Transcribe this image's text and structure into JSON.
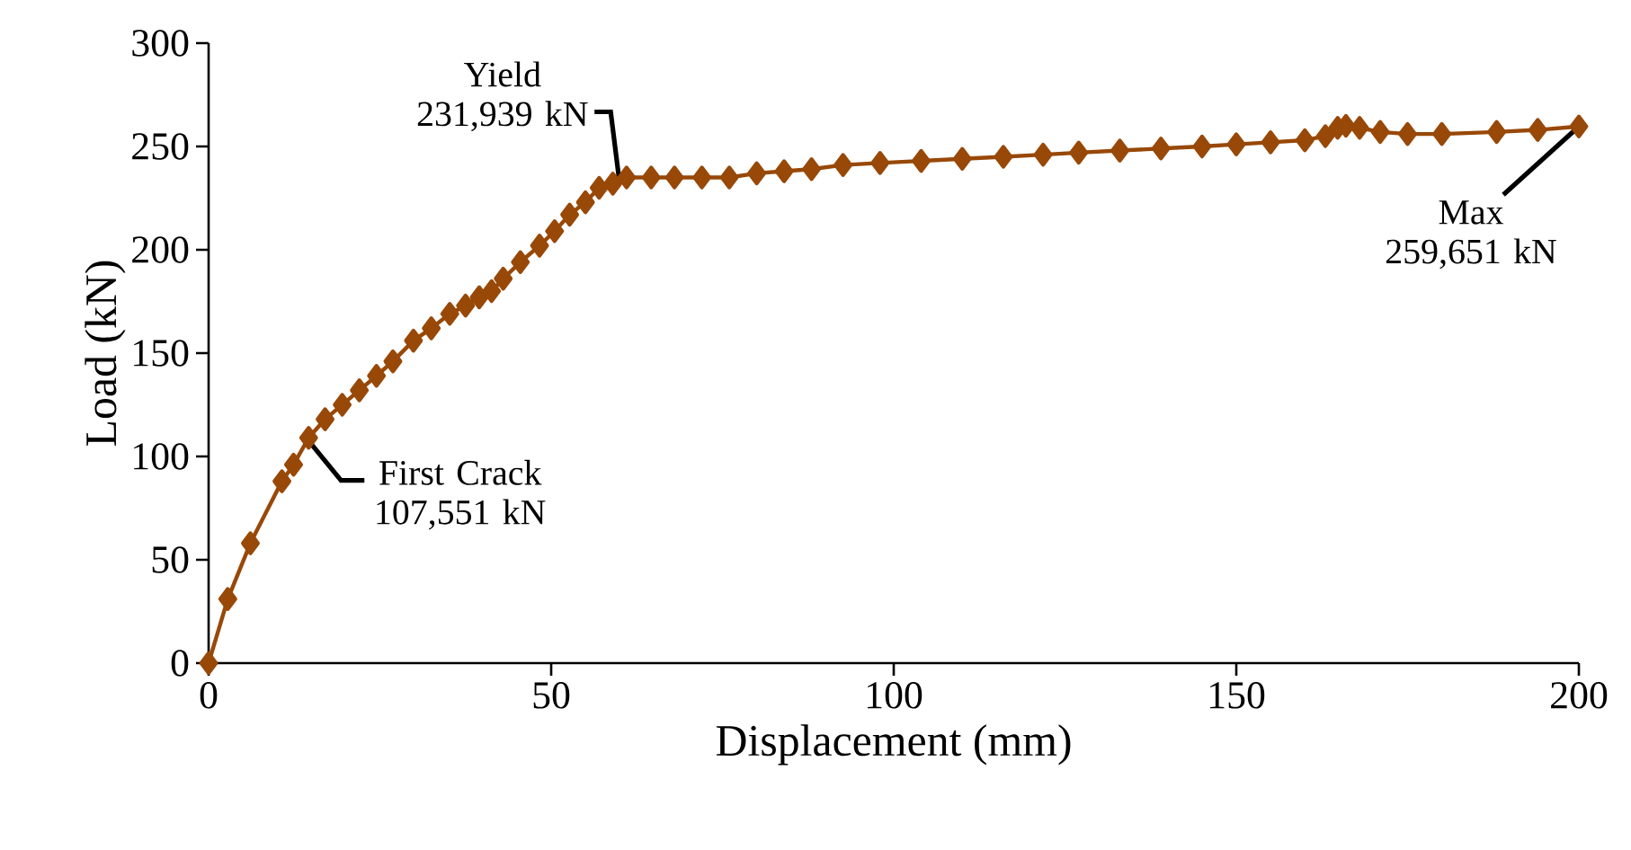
{
  "chart_data": {
    "type": "line",
    "xlabel": "Displacement (mm)",
    "ylabel": "Load (kN)",
    "xlim": [
      0,
      200
    ],
    "ylim": [
      0,
      300
    ],
    "xticks": [
      0,
      50,
      100,
      150,
      200
    ],
    "yticks": [
      0,
      50,
      100,
      150,
      200,
      250,
      300
    ],
    "grid": false,
    "marker": "diamond",
    "line_style": "solid",
    "series": [
      {
        "color": "#984807",
        "x": [
          0,
          2.8,
          6.1,
          10.7,
          12.4,
          14.6,
          17,
          19.5,
          22,
          24.5,
          26.9,
          29.9,
          32.5,
          35.2,
          37.5,
          39.5,
          41.3,
          43,
          45.5,
          48.3,
          50.5,
          52.7,
          55,
          57,
          59,
          61,
          64.6,
          68,
          72,
          76,
          80,
          84,
          88,
          92.6,
          98,
          104,
          110,
          116,
          121.8,
          127,
          133,
          139,
          145,
          150,
          155,
          160,
          163,
          164.8,
          166,
          168,
          171,
          175,
          180,
          188,
          194,
          200
        ],
        "values": [
          0,
          31,
          58,
          88,
          96,
          109,
          118,
          125,
          132,
          139,
          146,
          156,
          162,
          169,
          173,
          177,
          180,
          186,
          194,
          202,
          209,
          217,
          223,
          230,
          232,
          235,
          235,
          235,
          235,
          235,
          237,
          238,
          239,
          241,
          242,
          243,
          244,
          245,
          246,
          247,
          248,
          249,
          250,
          251,
          252,
          253,
          255,
          259,
          260,
          259,
          257,
          256,
          256,
          257,
          258,
          259.651
        ]
      }
    ],
    "annotations": [
      {
        "text": "Yield 231,939 kN",
        "x": 60,
        "y": 231.939
      },
      {
        "text": "First Crack 107,551 kN",
        "x": 14.6,
        "y": 107.551
      },
      {
        "text": "Max 259,651 kN",
        "x": 200,
        "y": 259.651
      }
    ]
  }
}
